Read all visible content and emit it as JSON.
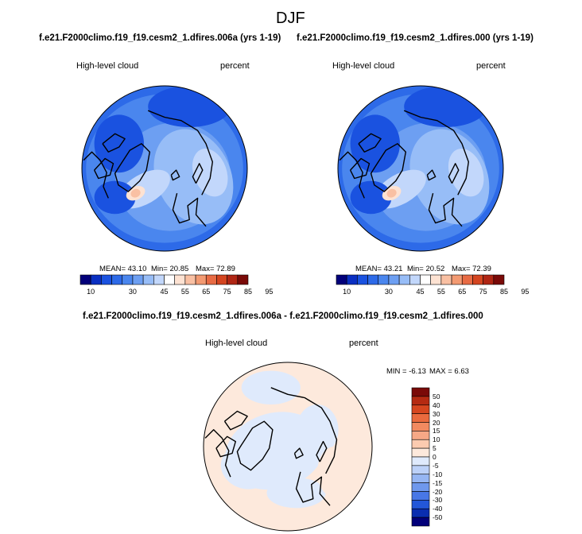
{
  "figure_title": "DJF",
  "chart_data": [
    {
      "type": "heatmap",
      "map_projection": "polar stereographic (north pole)",
      "title": "f.e21.F2000climo.f19_f19.cesm2_1.dfires.006a (yrs 1-19)",
      "variable_label": "High-level cloud",
      "units_label": "percent",
      "stats_text": {
        "mean": "MEAN= 43.10",
        "min": "Min= 20.85",
        "max": "Max= 72.89"
      },
      "stats": {
        "mean": 43.1,
        "min": 20.85,
        "max": 72.89
      },
      "colorbar": {
        "orientation": "horizontal",
        "levels": [
          10,
          15,
          20,
          25,
          30,
          35,
          40,
          45,
          50,
          55,
          60,
          65,
          70,
          75,
          80,
          85,
          90,
          95
        ],
        "tick_labels": [
          "10",
          "30",
          "45",
          "55",
          "65",
          "75",
          "85",
          "95"
        ],
        "colors": [
          "#02007a",
          "#0a2fc2",
          "#1a52e0",
          "#2d6ae8",
          "#4a86ee",
          "#6d9ff2",
          "#97bdf7",
          "#c2d7fb",
          "#ffffff",
          "#fde2d2",
          "#f9c0a3",
          "#f39a72",
          "#e86b44",
          "#d44520",
          "#b02614",
          "#7a0a08"
        ]
      }
    },
    {
      "type": "heatmap",
      "map_projection": "polar stereographic (north pole)",
      "title": "f.e21.F2000climo.f19_f19.cesm2_1.dfires.000 (yrs 1-19)",
      "variable_label": "High-level cloud",
      "units_label": "percent",
      "stats_text": {
        "mean": "MEAN= 43.21",
        "min": "Min= 20.52",
        "max": "Max= 72.39"
      },
      "stats": {
        "mean": 43.21,
        "min": 20.52,
        "max": 72.39
      },
      "colorbar": {
        "orientation": "horizontal",
        "levels": [
          10,
          15,
          20,
          25,
          30,
          35,
          40,
          45,
          50,
          55,
          60,
          65,
          70,
          75,
          80,
          85,
          90,
          95
        ],
        "tick_labels": [
          "10",
          "30",
          "45",
          "55",
          "65",
          "75",
          "85",
          "95"
        ],
        "colors": [
          "#02007a",
          "#0a2fc2",
          "#1a52e0",
          "#2d6ae8",
          "#4a86ee",
          "#6d9ff2",
          "#97bdf7",
          "#c2d7fb",
          "#ffffff",
          "#fde2d2",
          "#f9c0a3",
          "#f39a72",
          "#e86b44",
          "#d44520",
          "#b02614",
          "#7a0a08"
        ]
      }
    },
    {
      "type": "heatmap",
      "map_projection": "polar stereographic (north pole)",
      "title": "f.e21.F2000climo.f19_f19.cesm2_1.dfires.006a - f.e21.F2000climo.f19_f19.cesm2_1.dfires.000",
      "variable_label": "High-level cloud",
      "units_label": "percent",
      "stats_text": {
        "min": "MIN = -6.13",
        "max": "MAX = 6.63"
      },
      "stats": {
        "min": -6.13,
        "max": 6.63
      },
      "colorbar": {
        "orientation": "vertical",
        "tick_labels": [
          "50",
          "40",
          "30",
          "20",
          "15",
          "10",
          "5",
          "0",
          "-5",
          "-10",
          "-15",
          "-20",
          "-30",
          "-40",
          "-50"
        ],
        "colors": [
          "#7a0a08",
          "#b52a12",
          "#d6461f",
          "#ea6a3e",
          "#f28a60",
          "#f6a886",
          "#fbcbb0",
          "#fde9dc",
          "#dfeafc",
          "#bcd1f8",
          "#96b6f3",
          "#6f98ed",
          "#4877e6",
          "#2357d8",
          "#0a2eb0",
          "#02007a"
        ]
      }
    }
  ]
}
